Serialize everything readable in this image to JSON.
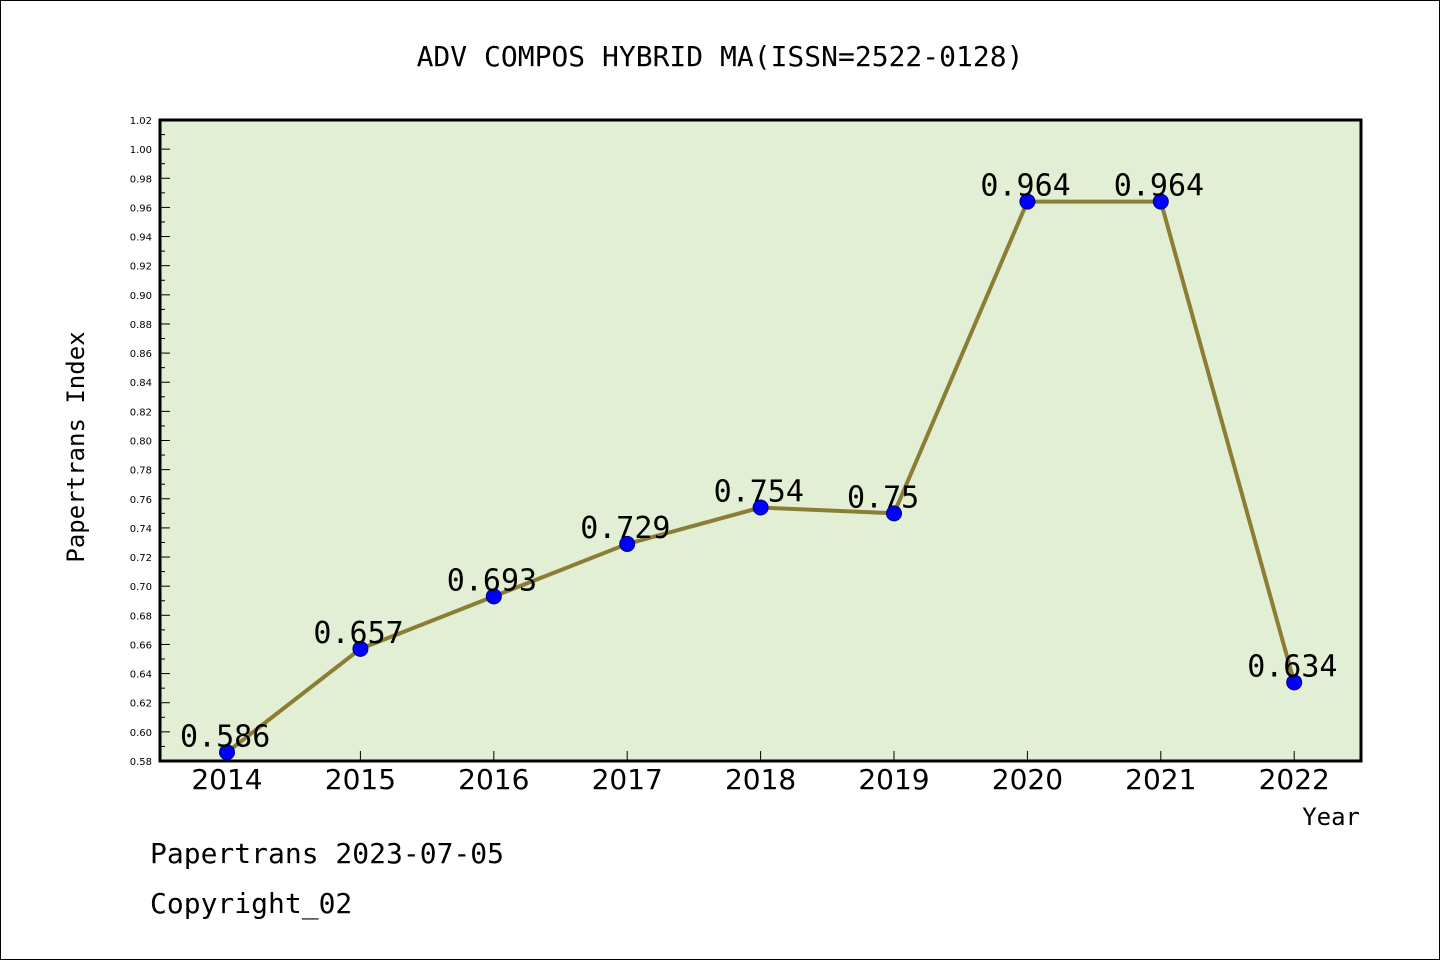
{
  "chart_data": {
    "type": "line",
    "title": "ADV COMPOS HYBRID MA(ISSN=2522-0128)",
    "xlabel": "Year",
    "ylabel": "Papertrans Index",
    "categories": [
      "2014",
      "2015",
      "2016",
      "2017",
      "2018",
      "2019",
      "2020",
      "2021",
      "2022"
    ],
    "series": [
      {
        "values": [
          0.586,
          0.657,
          0.693,
          0.729,
          0.754,
          0.75,
          0.964,
          0.964,
          0.634
        ]
      }
    ],
    "data_labels": [
      "0.586",
      "0.657",
      "0.693",
      "0.729",
      "0.754",
      "0.75",
      "0.964",
      "0.964",
      "0.634"
    ],
    "ylim": [
      0.58,
      1.02
    ],
    "y_ticks": [
      "0.58",
      "0.60",
      "0.62",
      "0.64",
      "0.66",
      "0.68",
      "0.70",
      "0.72",
      "0.74",
      "0.76",
      "0.78",
      "0.80",
      "0.82",
      "0.84",
      "0.86",
      "0.88",
      "0.90",
      "0.92",
      "0.94",
      "0.96",
      "0.98",
      "1.00",
      "1.02"
    ],
    "grid": false,
    "legend": "none",
    "colors": {
      "plot_background": "#e2efd5",
      "line": "#8b7d34",
      "marker": "#0000ff"
    }
  },
  "footer": {
    "line1": "Papertrans 2023-07-05",
    "line2": "Copyright_02"
  }
}
